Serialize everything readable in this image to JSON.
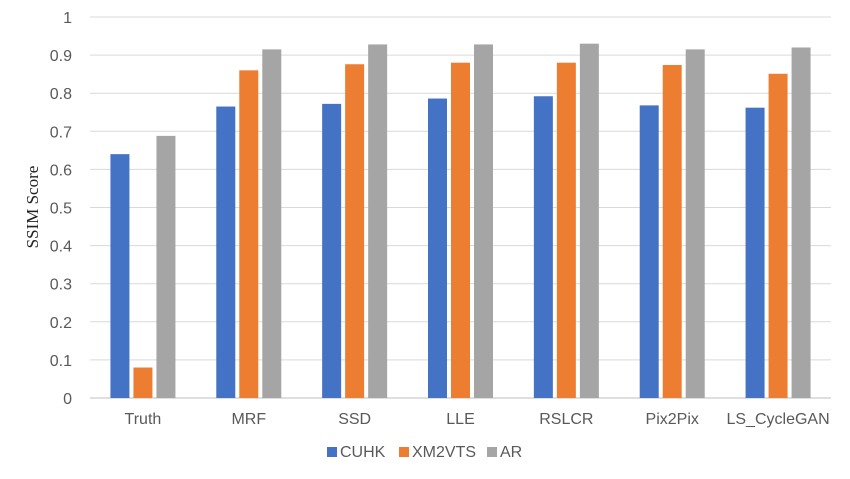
{
  "chart_data": {
    "type": "bar",
    "title": "",
    "xlabel": "",
    "ylabel": "SSIM Score",
    "ylim": [
      0,
      1
    ],
    "yticks": [
      "0",
      "0.1",
      "0.2",
      "0.3",
      "0.4",
      "0.5",
      "0.6",
      "0.7",
      "0.8",
      "0.9",
      "1"
    ],
    "grid": true,
    "legend_position": "bottom",
    "categories": [
      "Truth",
      "MRF",
      "SSD",
      "LLE",
      "RSLCR",
      "Pix2Pix",
      "LS_CycleGAN"
    ],
    "series": [
      {
        "name": "CUHK",
        "color": "#4472c4",
        "values": [
          0.64,
          0.765,
          0.772,
          0.786,
          0.792,
          0.768,
          0.762
        ]
      },
      {
        "name": "XM2VTS",
        "color": "#ed7d31",
        "values": [
          0.08,
          0.86,
          0.876,
          0.88,
          0.88,
          0.874,
          0.851
        ]
      },
      {
        "name": "AR",
        "color": "#a5a5a5",
        "values": [
          0.688,
          0.915,
          0.928,
          0.928,
          0.93,
          0.915,
          0.92
        ]
      }
    ]
  }
}
